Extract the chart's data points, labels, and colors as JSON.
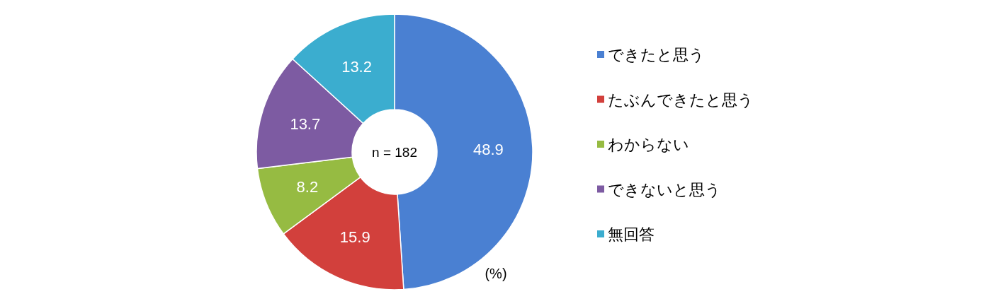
{
  "chart_data": {
    "type": "donut",
    "categories": [
      "できたと思う",
      "たぶんできたと思う",
      "わからない",
      "できないと思う",
      "無回答"
    ],
    "values": [
      48.9,
      15.9,
      8.2,
      13.7,
      13.2
    ],
    "colors": [
      "#4a80d2",
      "#d2403c",
      "#96bb42",
      "#7d5ba2",
      "#3badcf"
    ],
    "data_labels": true,
    "legend": "right",
    "annotations": [
      "n = 182",
      "(%)"
    ]
  }
}
